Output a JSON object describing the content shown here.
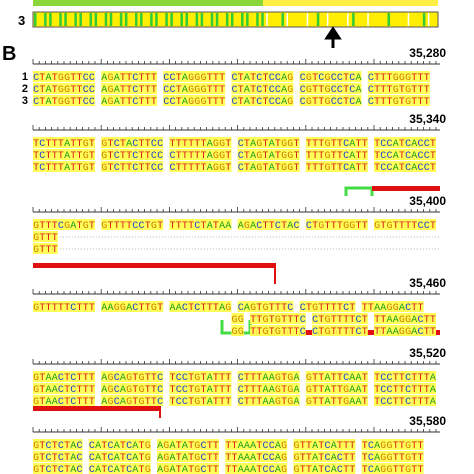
{
  "panel_label": "B",
  "top_track_label": "3",
  "blocks": [
    {
      "position": "35,280",
      "rows": [
        {
          "label": "1",
          "text": "CTATGGTTCC AGATTCTTT CCTAGGGTTT CTATCTCCAG CGTCGCCTCA CTTTGGGTTT"
        },
        {
          "label": "2",
          "text": "CTATGGTTCC AGATTCTTT CCTAGGGTTT CTATCTCCAG CGTTGCCTCA CTTTGTGTTT"
        },
        {
          "label": "3",
          "text": "CTATGGTTCC AGATTCTTT CCTAGGGTTT CTATCTCCAG CGTTGCCTCA CTTTGTGTTT"
        }
      ]
    },
    {
      "position": "35,340",
      "rows": [
        {
          "text": "TCTTTATTGT GTCTACTTCC TTTTTTAGGT CTAGTATGGT TTTGTTCATT TCCATCACCT"
        },
        {
          "text": "TCTTTATTGT GTCTTCTTCC CTTTTTAGGT CTAGTATGGT TTTGTTCATT TCCATCACCT"
        },
        {
          "text": "TCTTTATTGT GTCTTCTTCC CTTTTTAGGT CTAGTATGGT TTTGTTCATT TCCATCACCT"
        }
      ]
    },
    {
      "position": "35,400",
      "rows": [
        {
          "text": "GTTTCGATGT GTTTTCCTGT TTTTCTATAA AGACTTCTAC CTGTTTGGTT GTGTTTTCCT"
        },
        {
          "text": "GTTT"
        },
        {
          "text": "GTTT"
        }
      ]
    },
    {
      "position": "35,460",
      "rows": [
        {
          "text": "GTTTTTCTTT AAGGACTTGT AACTCTTTAG CAGTGTTTC CTGTTTTCT TTAAGGACTT"
        },
        {
          "text": "                                GG TTGTGTTTC CTGTTTTCT TTAAGGACTT"
        },
        {
          "text": "                                GG TTGTGTTTC CTGTTTTCT TTAAGGACTT"
        }
      ]
    },
    {
      "position": "35,520",
      "rows": [
        {
          "text": "GTAACTCTTT AGCAGTGTTC TCCTGTATTT CTTTAAGTGA GTTATTCAAT TCCTTCTTTA"
        },
        {
          "text": "GTAACTCTTT AGCAGTGTTC TCCTGTATTT CTTTAAGTGA GTTATTGAAT TCCTTCTTTA"
        },
        {
          "text": "GTAACTCTTT AGCAGTGTTC TCCTGTATTT CTTTAAGTGA GTTATTGAAT TCCTTCTTTA"
        }
      ]
    },
    {
      "position": "35,580",
      "rows": [
        {
          "text": "GTCTCTAC CATCATCATG AGATATGCTT TTAAATCCAG GTTATCATTT TCAGGTTGTT"
        },
        {
          "text": "GTCTCTAC CATCATCATG AGATATGCTT TTAAATCCAG GTTATCACTT TCAGGTTGTT"
        },
        {
          "text": "GTCTCTAC CATCATCATG AGATATGCTT TTAAATCCAG GTTATCACTT TCAGGTTGTT"
        }
      ]
    }
  ]
}
